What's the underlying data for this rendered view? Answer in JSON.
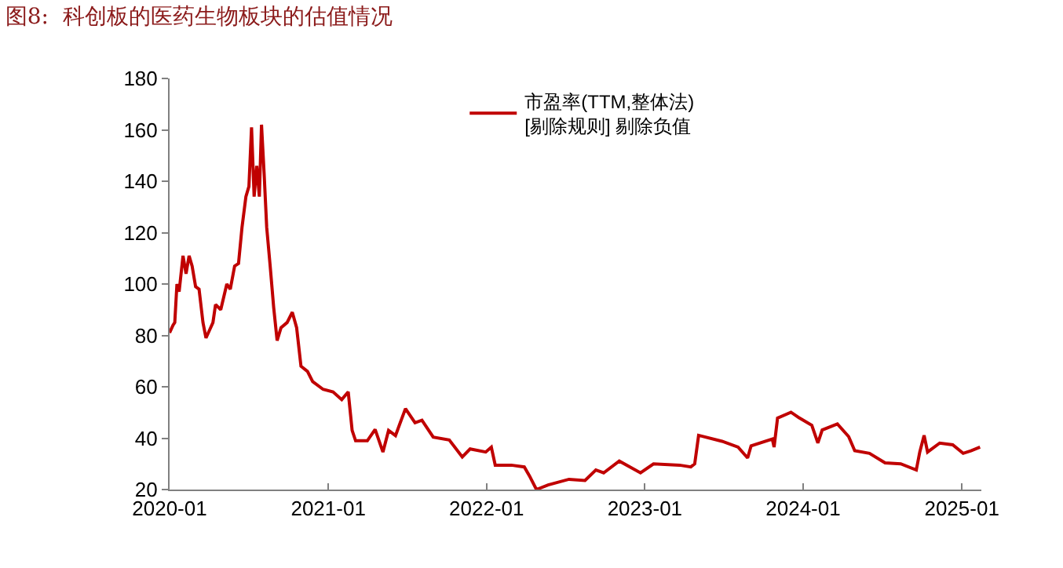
{
  "chart_data": {
    "type": "line",
    "title": "图8:  科创板的医药生物板块的估值情况",
    "series": [
      {
        "name": "市盈率(TTM,整体法)\n[剔除规则] 剔除负值",
        "color": "#c00000",
        "x": [
          "2020-01-01",
          "2020-01-09",
          "2020-01-13",
          "2020-01-18",
          "2020-01-23",
          "2020-02-01",
          "2020-02-08",
          "2020-02-15",
          "2020-02-22",
          "2020-03-01",
          "2020-03-09",
          "2020-03-18",
          "2020-03-25",
          "2020-04-02",
          "2020-04-10",
          "2020-04-16",
          "2020-04-28",
          "2020-05-12",
          "2020-05-20",
          "2020-05-30",
          "2020-06-08",
          "2020-06-16",
          "2020-06-25",
          "2020-07-02",
          "2020-07-08",
          "2020-07-14",
          "2020-07-20",
          "2020-07-26",
          "2020-07-31",
          "2020-08-06",
          "2020-08-12",
          "2020-08-20",
          "2020-08-28",
          "2020-09-05",
          "2020-09-14",
          "2020-09-28",
          "2020-10-10",
          "2020-10-20",
          "2020-10-30",
          "2020-11-14",
          "2020-11-26",
          "2020-12-20",
          "2021-01-12",
          "2021-02-01",
          "2021-02-16",
          "2021-02-25",
          "2021-03-05",
          "2021-04-01",
          "2021-04-19",
          "2021-05-07",
          "2021-05-20",
          "2021-06-05",
          "2021-06-28",
          "2021-07-20",
          "2021-08-05",
          "2021-08-31",
          "2021-10-07",
          "2021-11-06",
          "2021-11-24",
          "2021-12-30",
          "2022-01-12",
          "2022-01-21",
          "2022-02-27",
          "2022-03-29",
          "2022-04-10",
          "2022-04-26",
          "2022-05-23",
          "2022-07-10",
          "2022-08-16",
          "2022-09-10",
          "2022-09-28",
          "2022-11-03",
          "2022-12-22",
          "2023-01-21",
          "2023-03-22",
          "2023-04-17",
          "2023-04-26",
          "2023-05-05",
          "2023-06-28",
          "2023-08-04",
          "2023-08-26",
          "2023-09-03",
          "2023-10-22",
          "2023-10-26",
          "2023-11-03",
          "2023-12-04",
          "2023-12-22",
          "2024-01-21",
          "2024-02-04",
          "2024-02-14",
          "2024-03-20",
          "2024-04-15",
          "2024-04-29",
          "2024-06-02",
          "2024-07-08",
          "2024-08-13",
          "2024-09-18",
          "2024-09-26",
          "2024-10-06",
          "2024-10-14",
          "2024-11-11",
          "2024-12-11",
          "2025-01-04",
          "2025-01-22",
          "2025-02-12"
        ],
        "values": [
          81,
          84,
          85,
          100,
          97,
          111,
          104,
          111,
          107,
          99,
          98,
          85,
          79,
          82,
          85,
          92,
          90,
          100,
          98,
          107,
          108,
          122,
          134,
          138,
          161,
          134,
          146,
          134,
          162,
          143,
          122,
          107,
          91,
          78,
          83,
          85,
          89,
          83,
          68,
          66,
          62,
          59,
          58,
          55,
          58,
          43,
          39,
          39,
          43.4,
          34.6,
          43,
          41,
          51.5,
          46,
          47,
          40.4,
          39.3,
          32.7,
          35.8,
          34.6,
          36.5,
          29.5,
          29.5,
          28.8,
          25.3,
          20,
          21.8,
          24,
          23.5,
          27.6,
          26.5,
          31.1,
          26.5,
          30,
          29.5,
          28.8,
          30,
          41.1,
          38.8,
          36.5,
          32.3,
          37,
          39.7,
          36.5,
          47.8,
          50.1,
          48,
          45,
          38.1,
          43.2,
          45.5,
          40.6,
          35.1,
          34.1,
          30.4,
          30,
          27.6,
          34.6,
          41.1,
          34.6,
          38.1,
          37.4,
          34.1,
          35.1,
          36.5
        ]
      }
    ],
    "xlim": [
      "2020-01-01",
      "2025-02-15"
    ],
    "xticks": [
      {
        "value": "2020-01-01",
        "label": "2020-01"
      },
      {
        "value": "2021-01-01",
        "label": "2021-01"
      },
      {
        "value": "2022-01-01",
        "label": "2022-01"
      },
      {
        "value": "2023-01-01",
        "label": "2023-01"
      },
      {
        "value": "2024-01-01",
        "label": "2024-01"
      },
      {
        "value": "2025-01-01",
        "label": "2025-01"
      }
    ],
    "ylim": [
      20,
      180
    ],
    "yticks": [
      20,
      40,
      60,
      80,
      100,
      120,
      140,
      160,
      180
    ],
    "grid": false,
    "legend": "top",
    "marker": "none",
    "line_style": "solid"
  }
}
